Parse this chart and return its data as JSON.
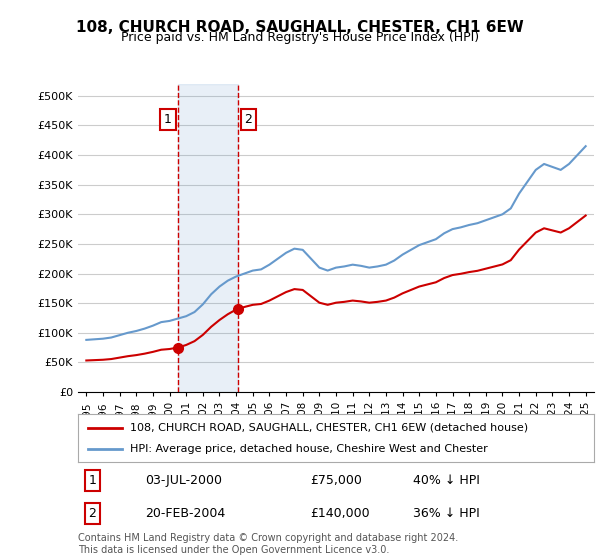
{
  "title": "108, CHURCH ROAD, SAUGHALL, CHESTER, CH1 6EW",
  "subtitle": "Price paid vs. HM Land Registry's House Price Index (HPI)",
  "legend_line1": "108, CHURCH ROAD, SAUGHALL, CHESTER, CH1 6EW (detached house)",
  "legend_line2": "HPI: Average price, detached house, Cheshire West and Chester",
  "footnote": "Contains HM Land Registry data © Crown copyright and database right 2024.\nThis data is licensed under the Open Government Licence v3.0.",
  "transaction1_label": "1",
  "transaction1_date": "03-JUL-2000",
  "transaction1_price": "£75,000",
  "transaction1_hpi": "40% ↓ HPI",
  "transaction2_label": "2",
  "transaction2_date": "20-FEB-2004",
  "transaction2_price": "£140,000",
  "transaction2_hpi": "36% ↓ HPI",
  "sale_color": "#cc0000",
  "hpi_color": "#6699cc",
  "background_color": "#ffffff",
  "plot_bg_color": "#ffffff",
  "grid_color": "#cccccc",
  "ylim": [
    0,
    520000
  ],
  "yticks": [
    0,
    50000,
    100000,
    150000,
    200000,
    250000,
    300000,
    350000,
    400000,
    450000,
    500000
  ],
  "ytick_labels": [
    "£0",
    "£50K",
    "£100K",
    "£150K",
    "£200K",
    "£250K",
    "£300K",
    "£350K",
    "£400K",
    "£450K",
    "£500K"
  ],
  "xlim_start": 1994.5,
  "xlim_end": 2025.5,
  "sale1_x": 2000.5,
  "sale1_y": 75000,
  "sale2_x": 2004.13,
  "sale2_y": 140000,
  "vline1_x": 2000.5,
  "vline2_x": 2004.13,
  "shade_start": 2000.5,
  "shade_end": 2004.13
}
